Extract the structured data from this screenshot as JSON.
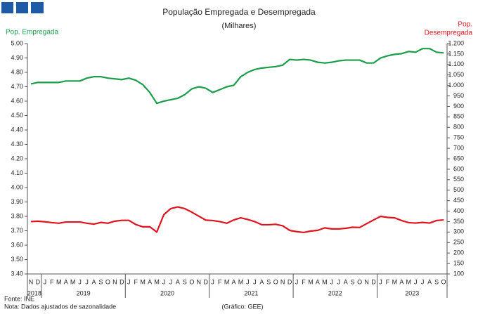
{
  "chart_data": {
    "type": "line",
    "title": "População Empregada e Desempregada",
    "subtitle": "(Milhares)",
    "y_label": "Pop. Empregada",
    "y2_label": [
      "Pop.",
      "Desempregada"
    ],
    "categories": [
      "N",
      "D",
      "J",
      "F",
      "M",
      "A",
      "M",
      "J",
      "J",
      "A",
      "S",
      "O",
      "N",
      "D",
      "J",
      "F",
      "M",
      "A",
      "M",
      "J",
      "J",
      "A",
      "S",
      "O",
      "N",
      "D",
      "J",
      "F",
      "M",
      "A",
      "M",
      "J",
      "J",
      "A",
      "S",
      "O",
      "N",
      "D",
      "J",
      "F",
      "M",
      "A",
      "M",
      "J",
      "J",
      "A",
      "S",
      "O",
      "N",
      "D",
      "J",
      "F",
      "M",
      "A",
      "M",
      "J",
      "J",
      "A",
      "S",
      "O"
    ],
    "year_labels": [
      "2018",
      "2019",
      "2020",
      "2021",
      "2022",
      "2023"
    ],
    "series": [
      {
        "name": "Pop. Empregada",
        "color": "#1a9e4a",
        "axis": "y",
        "values": [
          4.72,
          4.73,
          4.73,
          4.73,
          4.73,
          4.74,
          4.74,
          4.74,
          4.76,
          4.77,
          4.77,
          4.76,
          4.755,
          4.75,
          4.76,
          4.745,
          4.715,
          4.66,
          4.585,
          4.6,
          4.61,
          4.62,
          4.645,
          4.685,
          4.7,
          4.69,
          4.66,
          4.68,
          4.7,
          4.71,
          4.77,
          4.8,
          4.82,
          4.83,
          4.835,
          4.84,
          4.85,
          4.89,
          4.885,
          4.89,
          4.885,
          4.87,
          4.865,
          4.87,
          4.88,
          4.885,
          4.885,
          4.885,
          4.865,
          4.865,
          4.9,
          4.915,
          4.925,
          4.93,
          4.945,
          4.94,
          4.965,
          4.965,
          4.94,
          4.935
        ]
      },
      {
        "name": "Pop. Desempregada",
        "color": "#e0141e",
        "axis": "y2",
        "values": [
          350,
          352,
          349,
          345,
          342,
          348,
          348,
          348,
          342,
          338,
          346,
          342,
          352,
          356,
          356,
          336,
          325,
          325,
          300,
          383,
          412,
          420,
          412,
          395,
          376,
          357,
          355,
          350,
          342,
          358,
          368,
          360,
          350,
          335,
          335,
          337,
          330,
          308,
          302,
          298,
          305,
          308,
          320,
          315,
          315,
          318,
          323,
          322,
          340,
          358,
          375,
          370,
          368,
          355,
          345,
          343,
          346,
          343,
          355,
          358
        ]
      }
    ],
    "ylim": [
      3.4,
      5.0
    ],
    "yticks": [
      {
        "value": 3.4,
        "label": "3.40"
      },
      {
        "value": 3.5,
        "label": "3.50"
      },
      {
        "value": 3.6,
        "label": "3.60"
      },
      {
        "value": 3.7,
        "label": "3.70"
      },
      {
        "value": 3.8,
        "label": "3.80"
      },
      {
        "value": 3.9,
        "label": "3.90"
      },
      {
        "value": 4.0,
        "label": "4.00"
      },
      {
        "value": 4.1,
        "label": "4.10"
      },
      {
        "value": 4.2,
        "label": "4.20"
      },
      {
        "value": 4.3,
        "label": "4.30"
      },
      {
        "value": 4.4,
        "label": "4.40"
      },
      {
        "value": 4.5,
        "label": "4.50"
      },
      {
        "value": 4.6,
        "label": "4.60"
      },
      {
        "value": 4.7,
        "label": "4.70"
      },
      {
        "value": 4.8,
        "label": "4.80"
      },
      {
        "value": 4.9,
        "label": "4.90"
      },
      {
        "value": 5.0,
        "label": "5.00"
      }
    ],
    "y2lim": [
      100,
      1200
    ],
    "y2ticks": [
      100,
      150,
      200,
      250,
      300,
      350,
      400,
      450,
      500,
      550,
      600,
      650,
      700,
      750,
      800,
      850,
      900,
      950,
      {
        "value": 1000,
        "label": "1.000"
      },
      {
        "value": 1050,
        "label": "1.050"
      },
      {
        "value": 1100,
        "label": "1.100"
      },
      {
        "value": 1150,
        "label": "1.150"
      },
      {
        "value": 1200,
        "label": "1.200"
      }
    ],
    "source": "Fonte: INE",
    "note": "Nota: Dados ajustados de sazonalidade",
    "credit": "(Gráfico: GEE)"
  }
}
